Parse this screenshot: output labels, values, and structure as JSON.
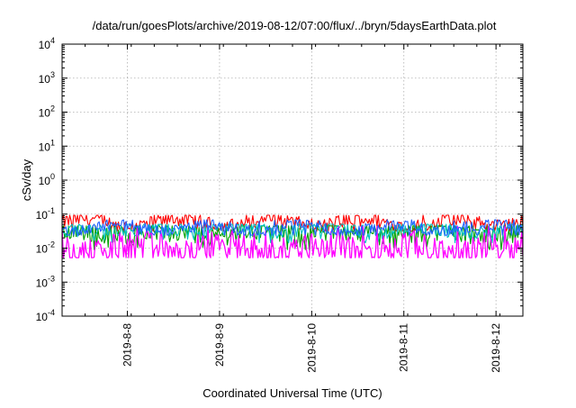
{
  "chart_data": {
    "type": "line",
    "title": "/data/run/goesPlots/archive/2019-08-12/07:00/flux/../bryn/5daysEarthData.plot",
    "xlabel": "Coordinated Universal Time (UTC)",
    "ylabel": "cSv/day",
    "y_scale": "log",
    "ylim": [
      0.0001,
      10000
    ],
    "y_ticks": [
      {
        "value": 0.0001,
        "mantissa": "10",
        "exp": "-4"
      },
      {
        "value": 0.001,
        "mantissa": "10",
        "exp": "-3"
      },
      {
        "value": 0.01,
        "mantissa": "10",
        "exp": "-2"
      },
      {
        "value": 0.1,
        "mantissa": "10",
        "exp": "-1"
      },
      {
        "value": 1,
        "mantissa": "10",
        "exp": "0"
      },
      {
        "value": 10,
        "mantissa": "10",
        "exp": "1"
      },
      {
        "value": 100,
        "mantissa": "10",
        "exp": "2"
      },
      {
        "value": 1000,
        "mantissa": "10",
        "exp": "3"
      },
      {
        "value": 10000,
        "mantissa": "10",
        "exp": "4"
      }
    ],
    "xlim": [
      "2019-08-07T07:00",
      "2019-08-12T07:00"
    ],
    "x_ticks": [
      {
        "value": "2019-08-08T00:00",
        "label": "2019-8-8"
      },
      {
        "value": "2019-08-09T00:00",
        "label": "2019-8-9"
      },
      {
        "value": "2019-08-10T00:00",
        "label": "2019-8-10"
      },
      {
        "value": "2019-08-11T00:00",
        "label": "2019-8-11"
      },
      {
        "value": "2019-08-12T00:00",
        "label": "2019-8-12"
      }
    ],
    "grid": true,
    "series": [
      {
        "color": "#ff0000",
        "base": 0.058,
        "spread": 0.22,
        "minrel": 0.55,
        "maxrel": 1.6
      },
      {
        "color": "#00a000",
        "base": 0.03,
        "spread": 0.35,
        "minrel": 0.3,
        "maxrel": 1.5
      },
      {
        "color": "#00c0c0",
        "base": 0.036,
        "spread": 0.25,
        "minrel": 0.4,
        "maxrel": 1.4
      },
      {
        "color": "#ff00ff",
        "base": 0.0095,
        "spread": 0.45,
        "minrel": 0.55,
        "maxrel": 4.5
      },
      {
        "color": "#2060ff",
        "base": 0.04,
        "spread": 0.18,
        "minrel": 0.6,
        "maxrel": 1.7
      }
    ],
    "samples": 360
  }
}
